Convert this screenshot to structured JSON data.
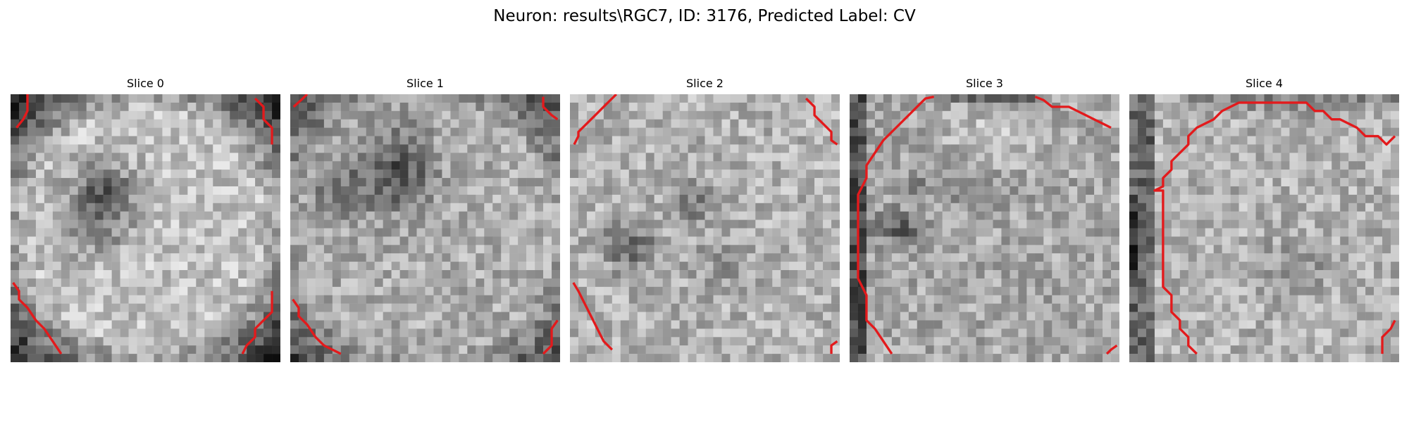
{
  "figure": {
    "title": "Neuron: results\\RGC7, ID: 3176, Predicted Label: CV",
    "outline_color": "#e31a1c"
  },
  "slices": [
    {
      "title": "Slice 0"
    },
    {
      "title": "Slice 1"
    },
    {
      "title": "Slice 2"
    },
    {
      "title": "Slice 3"
    },
    {
      "title": "Slice 4"
    }
  ]
}
